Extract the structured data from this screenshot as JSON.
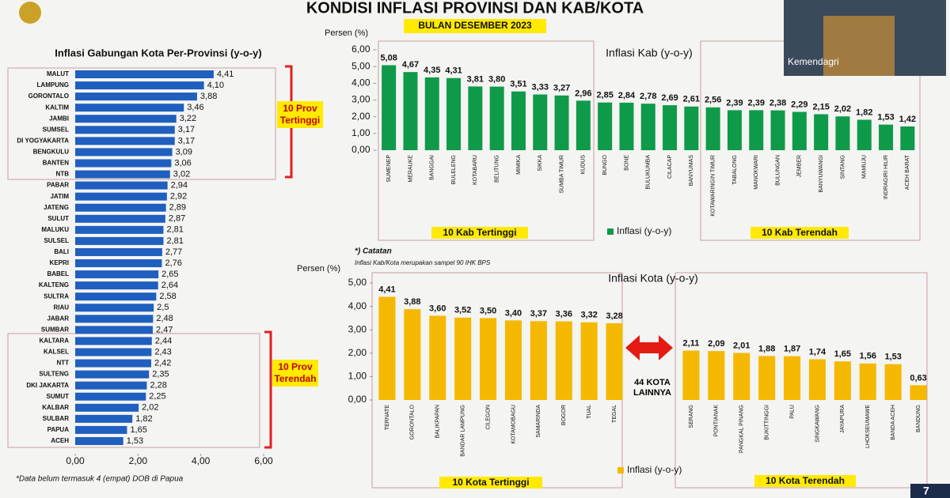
{
  "header": {
    "title": "KONDISI INFLASI PROVINSI DAN KAB/KOTA",
    "subtitle": "BULAN DESEMBER 2023"
  },
  "overlay": {
    "video_label": "Kemendagri",
    "page_number": "7"
  },
  "chart_data": [
    {
      "type": "bar",
      "orientation": "horizontal",
      "title": "Inflasi Gabungan Kota Per-Provinsi (y-o-y)",
      "categories": [
        "MALUT",
        "LAMPUNG",
        "GORONTALO",
        "KALTIM",
        "JAMBI",
        "SUMSEL",
        "DI YOGYAKARTA",
        "BENGKULU",
        "BANTEN",
        "NTB",
        "PABAR",
        "JATIM",
        "JATENG",
        "SULUT",
        "MALUKU",
        "SULSEL",
        "BALI",
        "KEPRI",
        "BABEL",
        "KALTENG",
        "SULTRA",
        "RIAU",
        "JABAR",
        "SUMBAR",
        "KALTARA",
        "KALSEL",
        "NTT",
        "SULTENG",
        "DKI JAKARTA",
        "SUMUT",
        "KALBAR",
        "SULBAR",
        "PAPUA",
        "ACEH"
      ],
      "values": [
        4.41,
        4.1,
        3.88,
        3.46,
        3.22,
        3.17,
        3.17,
        3.09,
        3.06,
        3.02,
        2.94,
        2.92,
        2.89,
        2.87,
        2.81,
        2.81,
        2.77,
        2.76,
        2.65,
        2.64,
        2.58,
        2.5,
        2.48,
        2.47,
        2.44,
        2.43,
        2.42,
        2.35,
        2.28,
        2.25,
        2.02,
        1.82,
        1.65,
        1.53
      ],
      "value_labels": [
        "4,41",
        "4,10",
        "3,88",
        "3,46",
        "3,22",
        "3,17",
        "3,17",
        "3,09",
        "3,06",
        "3,02",
        "2,94",
        "2,92",
        "2,89",
        "2,87",
        "2,81",
        "2,81",
        "2,77",
        "2,76",
        "2,65",
        "2,64",
        "2,58",
        "2,5",
        "2,48",
        "2,47",
        "2,44",
        "2,43",
        "2,42",
        "2,35",
        "2,28",
        "2,25",
        "2,02",
        "1,82",
        "1,65",
        "1,53"
      ],
      "color": "#1f5fbf",
      "xlim": [
        0,
        6
      ],
      "xticks": [
        {
          "value": 0,
          "label": "0,00"
        },
        {
          "value": 2,
          "label": "2,00"
        },
        {
          "value": 4,
          "label": "4,00"
        },
        {
          "value": 6,
          "label": "6,00"
        }
      ],
      "annotations": [
        "10 Prov Tertinggi",
        "10 Prov Terendah"
      ],
      "footnote": "*Data belum termasuk 4 (empat) DOB di Papua"
    },
    {
      "type": "bar",
      "title": "Inflasi Kab (y-o-y)",
      "y_label": "Persen (%)",
      "categories": [
        "SUMENEP",
        "MERAUKE",
        "BANGGAI",
        "BULELENG",
        "KOTABARU",
        "BELITUNG",
        "MIMIKA",
        "SIKKA",
        "SUMBA TIMUR",
        "KUDUS",
        "BUNGO",
        "BONE",
        "BULUKUMBA",
        "CILACAP",
        "BANYUMAS",
        "KOTAWARINGIN TIMUR",
        "TABALONG",
        "MANOKWARI",
        "BULUNGAN",
        "JEMBER",
        "BANYUWANGI",
        "SINTANG",
        "MAMUJU",
        "INDRAGIRI HILIR",
        "ACEH BARAT"
      ],
      "series": [
        {
          "name": "Inflasi (y-o-y)",
          "color": "#0f9a4a",
          "values": [
            5.08,
            4.67,
            4.35,
            4.31,
            3.81,
            3.8,
            3.51,
            3.33,
            3.27,
            2.96,
            2.85,
            2.84,
            2.78,
            2.69,
            2.61,
            2.56,
            2.39,
            2.39,
            2.38,
            2.29,
            2.15,
            2.02,
            1.82,
            1.53,
            1.42
          ],
          "value_labels": [
            "5,08",
            "4,67",
            "4,35",
            "4,31",
            "3,81",
            "3,80",
            "3,51",
            "3,33",
            "3,27",
            "2,96",
            "2,85",
            "2,84",
            "2,78",
            "2,69",
            "2,61",
            "2,56",
            "2,39",
            "2,39",
            "2,38",
            "2,29",
            "2,15",
            "2,02",
            "1,82",
            "1,53",
            "1,42"
          ]
        }
      ],
      "ylim": [
        0,
        6
      ],
      "yticks": [
        {
          "value": 0,
          "label": "0,00"
        },
        {
          "value": 1,
          "label": "1,00"
        },
        {
          "value": 2,
          "label": "2,00"
        },
        {
          "value": 3,
          "label": "3,00"
        },
        {
          "value": 4,
          "label": "4,00"
        },
        {
          "value": 5,
          "label": "5,00"
        },
        {
          "value": 6,
          "label": "6,00"
        }
      ],
      "annotations": [
        "10 Kab Tertinggi",
        "10 Kab Terendah"
      ]
    },
    {
      "type": "bar",
      "title": "Inflasi Kota (y-o-y)",
      "y_label": "Persen (%)",
      "note_title": "*) Catatan",
      "note": "Inflasi Kab/Kota merupakan sampel 90 IHK BPS",
      "categories": [
        "TERNATE",
        "GORONTALO",
        "BALIKPAPAN",
        "BANDAR LAMPUNG",
        "CILEGON",
        "KOTAMOBAGU",
        "SAMARINDA",
        "BOGOR",
        "TUAL",
        "TEGAL",
        "SERANG",
        "PONTIANAK",
        "PANGKAL PINANG",
        "BUKITTINGGI",
        "PALU",
        "SINGKAWANG",
        "JAYAPURA",
        "LHOKSEUMAWE",
        "BANDA ACEH",
        "BANDUNG"
      ],
      "series": [
        {
          "name": "Inflasi (y-o-y)",
          "color": "#f5b800",
          "values": [
            4.41,
            3.88,
            3.6,
            3.52,
            3.5,
            3.4,
            3.37,
            3.36,
            3.32,
            3.28,
            2.11,
            2.09,
            2.01,
            1.88,
            1.87,
            1.74,
            1.65,
            1.56,
            1.53,
            0.63
          ],
          "value_labels": [
            "4,41",
            "3,88",
            "3,60",
            "3,52",
            "3,50",
            "3,40",
            "3,37",
            "3,36",
            "3,32",
            "3,28",
            "2,11",
            "2,09",
            "2,01",
            "1,88",
            "1,87",
            "1,74",
            "1,65",
            "1,56",
            "1,53",
            "0,63"
          ]
        }
      ],
      "ylim": [
        0,
        5
      ],
      "yticks": [
        {
          "value": 0,
          "label": "0,00"
        },
        {
          "value": 1,
          "label": "1,00"
        },
        {
          "value": 2,
          "label": "2,00"
        },
        {
          "value": 3,
          "label": "3,00"
        },
        {
          "value": 4,
          "label": "4,00"
        },
        {
          "value": 5,
          "label": "5,00"
        }
      ],
      "gap_label": "44 KOTA LAINNYA",
      "annotations": [
        "10 Kota Tertinggi",
        "10 Kota Terendah"
      ]
    }
  ]
}
